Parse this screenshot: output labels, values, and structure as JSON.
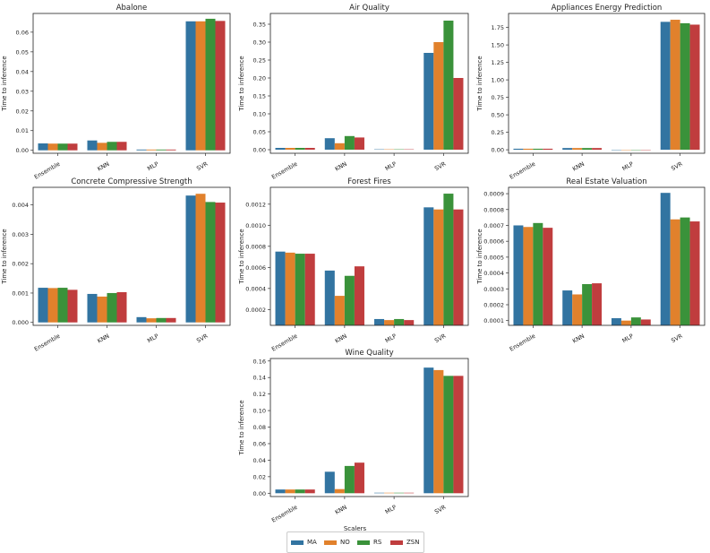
{
  "colors": {
    "MA": "#3274a1",
    "NO": "#e1812c",
    "RS": "#3a923a",
    "ZSN": "#c03d3e"
  },
  "legend": {
    "title": "Scalers",
    "items": [
      "MA",
      "NO",
      "RS",
      "ZSN"
    ]
  },
  "chart_data": [
    {
      "type": "bar",
      "title": "Abalone",
      "ylabel": "Time to inference",
      "categories": [
        "Ensemble",
        "KNN",
        "MLP",
        "SVR"
      ],
      "ylim": [
        -0.0015,
        0.0695
      ],
      "yticks": [
        0.0,
        0.01,
        0.02,
        0.03,
        0.04,
        0.05,
        0.06
      ],
      "yticklabels": [
        "0.00",
        "0.01",
        "0.02",
        "0.03",
        "0.04",
        "0.05",
        "0.06"
      ],
      "series": [
        {
          "name": "MA",
          "values": [
            0.0035,
            0.005,
            0.0004,
            0.0655
          ]
        },
        {
          "name": "NO",
          "values": [
            0.0034,
            0.0038,
            0.0004,
            0.0655
          ]
        },
        {
          "name": "RS",
          "values": [
            0.0034,
            0.0043,
            0.0004,
            0.0668
          ]
        },
        {
          "name": "ZSN",
          "values": [
            0.0034,
            0.0043,
            0.0004,
            0.0657
          ]
        }
      ]
    },
    {
      "type": "bar",
      "title": "Air Quality",
      "ylabel": "Time to inference",
      "categories": [
        "Ensemble",
        "KNN",
        "MLP",
        "SVR"
      ],
      "ylim": [
        -0.01,
        0.38
      ],
      "yticks": [
        0.0,
        0.05,
        0.1,
        0.15,
        0.2,
        0.25,
        0.3,
        0.35
      ],
      "yticklabels": [
        "0.00",
        "0.05",
        "0.10",
        "0.15",
        "0.20",
        "0.25",
        "0.30",
        "0.35"
      ],
      "series": [
        {
          "name": "MA",
          "values": [
            0.005,
            0.032,
            0.001,
            0.27
          ]
        },
        {
          "name": "NO",
          "values": [
            0.005,
            0.018,
            0.001,
            0.3
          ]
        },
        {
          "name": "RS",
          "values": [
            0.005,
            0.038,
            0.001,
            0.36
          ]
        },
        {
          "name": "ZSN",
          "values": [
            0.005,
            0.034,
            0.001,
            0.2
          ]
        }
      ]
    },
    {
      "type": "bar",
      "title": "Appliances Energy Prediction",
      "ylabel": "Time to inference",
      "categories": [
        "Ensemble",
        "KNN",
        "MLP",
        "SVR"
      ],
      "ylim": [
        -0.05,
        1.95
      ],
      "yticks": [
        0.0,
        0.25,
        0.5,
        0.75,
        1.0,
        1.25,
        1.5,
        1.75
      ],
      "yticklabels": [
        "0.00",
        "0.25",
        "0.50",
        "0.75",
        "1.00",
        "1.25",
        "1.50",
        "1.75"
      ],
      "series": [
        {
          "name": "MA",
          "values": [
            0.015,
            0.025,
            0.001,
            1.83
          ]
        },
        {
          "name": "NO",
          "values": [
            0.015,
            0.025,
            0.001,
            1.86
          ]
        },
        {
          "name": "RS",
          "values": [
            0.015,
            0.025,
            0.001,
            1.81
          ]
        },
        {
          "name": "ZSN",
          "values": [
            0.015,
            0.025,
            0.001,
            1.79
          ]
        }
      ]
    },
    {
      "type": "bar",
      "title": "Concrete Compressive Strength",
      "ylabel": "Time to inference",
      "categories": [
        "Ensemble",
        "KNN",
        "MLP",
        "SVR"
      ],
      "ylim": [
        -0.0001,
        0.0046
      ],
      "yticks": [
        0.0,
        0.001,
        0.002,
        0.003,
        0.004
      ],
      "yticklabels": [
        "0.000",
        "0.001",
        "0.002",
        "0.003",
        "0.004"
      ],
      "series": [
        {
          "name": "MA",
          "values": [
            0.00118,
            0.00097,
            0.00018,
            0.00432
          ]
        },
        {
          "name": "NO",
          "values": [
            0.00117,
            0.00088,
            0.00014,
            0.00438
          ]
        },
        {
          "name": "RS",
          "values": [
            0.00118,
            0.001,
            0.00015,
            0.0041
          ]
        },
        {
          "name": "ZSN",
          "values": [
            0.00111,
            0.00103,
            0.00015,
            0.00408
          ]
        }
      ]
    },
    {
      "type": "bar",
      "title": "Forest Fires",
      "ylabel": "Time to inference",
      "categories": [
        "Ensemble",
        "KNN",
        "MLP",
        "SVR"
      ],
      "ylim": [
        5e-05,
        0.00136
      ],
      "yticks": [
        0.0002,
        0.0004,
        0.0006,
        0.0008,
        0.001,
        0.0012
      ],
      "yticklabels": [
        "0.0002",
        "0.0004",
        "0.0006",
        "0.0008",
        "0.0010",
        "0.0012"
      ],
      "series": [
        {
          "name": "MA",
          "values": [
            0.00075,
            0.00057,
            0.00011,
            0.00117
          ]
        },
        {
          "name": "NO",
          "values": [
            0.00074,
            0.00033,
            0.0001,
            0.00115
          ]
        },
        {
          "name": "RS",
          "values": [
            0.00073,
            0.00052,
            0.00011,
            0.0013
          ]
        },
        {
          "name": "ZSN",
          "values": [
            0.00073,
            0.00061,
            0.0001,
            0.00115
          ]
        }
      ]
    },
    {
      "type": "bar",
      "title": "Real Estate Valuation",
      "ylabel": "Time to inference",
      "categories": [
        "Ensemble",
        "KNN",
        "MLP",
        "SVR"
      ],
      "ylim": [
        7e-05,
        0.00094
      ],
      "yticks": [
        0.0001,
        0.0002,
        0.0003,
        0.0004,
        0.0005,
        0.0006,
        0.0007,
        0.0008,
        0.0009
      ],
      "yticklabels": [
        "0.0001",
        "0.0002",
        "0.0003",
        "0.0004",
        "0.0005",
        "0.0006",
        "0.0007",
        "0.0008",
        "0.0009"
      ],
      "series": [
        {
          "name": "MA",
          "values": [
            0.0007,
            0.00029,
            0.000115,
            0.000905
          ]
        },
        {
          "name": "NO",
          "values": [
            0.00069,
            0.000265,
            0.0001,
            0.000738
          ]
        },
        {
          "name": "RS",
          "values": [
            0.000715,
            0.00033,
            0.00012,
            0.00075
          ]
        },
        {
          "name": "ZSN",
          "values": [
            0.000685,
            0.000335,
            0.000107,
            0.000725
          ]
        }
      ]
    },
    {
      "type": "bar",
      "title": "Wine Quality",
      "ylabel": "Time to inference",
      "categories": [
        "Ensemble",
        "KNN",
        "MLP",
        "SVR"
      ],
      "ylim": [
        -0.004,
        0.163
      ],
      "yticks": [
        0.0,
        0.02,
        0.04,
        0.06,
        0.08,
        0.1,
        0.12,
        0.14,
        0.16
      ],
      "yticklabels": [
        "0.00",
        "0.02",
        "0.04",
        "0.06",
        "0.08",
        "0.10",
        "0.12",
        "0.14",
        "0.16"
      ],
      "series": [
        {
          "name": "MA",
          "values": [
            0.0045,
            0.026,
            0.0006,
            0.152
          ]
        },
        {
          "name": "NO",
          "values": [
            0.0045,
            0.005,
            0.0006,
            0.149
          ]
        },
        {
          "name": "RS",
          "values": [
            0.0045,
            0.033,
            0.0006,
            0.142
          ]
        },
        {
          "name": "ZSN",
          "values": [
            0.0045,
            0.037,
            0.0006,
            0.142
          ]
        }
      ]
    }
  ]
}
